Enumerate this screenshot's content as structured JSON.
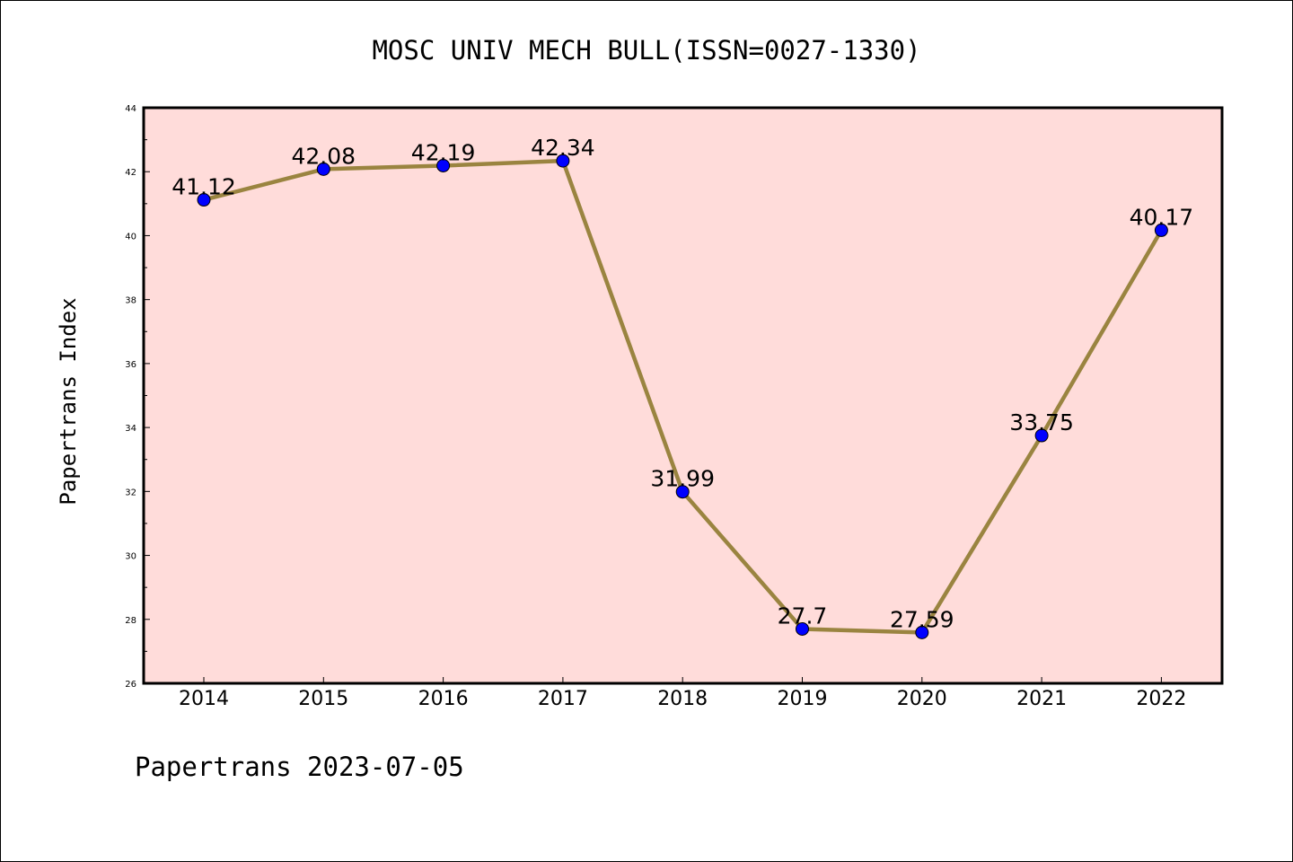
{
  "chart_data": {
    "type": "line",
    "title": "MOSC UNIV MECH BULL(ISSN=0027-1330)",
    "ylabel": "Papertrans Index",
    "xlabel": "",
    "footer": "Papertrans 2023-07-05",
    "categories": [
      "2014",
      "2015",
      "2016",
      "2017",
      "2018",
      "2019",
      "2020",
      "2021",
      "2022"
    ],
    "series": [
      {
        "values": [
          41.12,
          42.08,
          42.19,
          42.34,
          31.99,
          27.7,
          27.59,
          33.75,
          40.17
        ],
        "labels": [
          "41.12",
          "42.08",
          "42.19",
          "42.34",
          "31.99",
          "27.7",
          "27.59",
          "33.75",
          "40.17"
        ]
      }
    ],
    "ylim": [
      26,
      44
    ],
    "yticks": [
      26,
      28,
      30,
      32,
      34,
      36,
      38,
      40,
      42,
      44
    ],
    "ytick_labels": [
      "26",
      "28",
      "30",
      "32",
      "34",
      "36",
      "38",
      "40",
      "42",
      "44"
    ],
    "grid": false,
    "colors": {
      "plot_background": "#FFDCDA",
      "line": "#9A8440",
      "marker": "#0000FF"
    }
  }
}
